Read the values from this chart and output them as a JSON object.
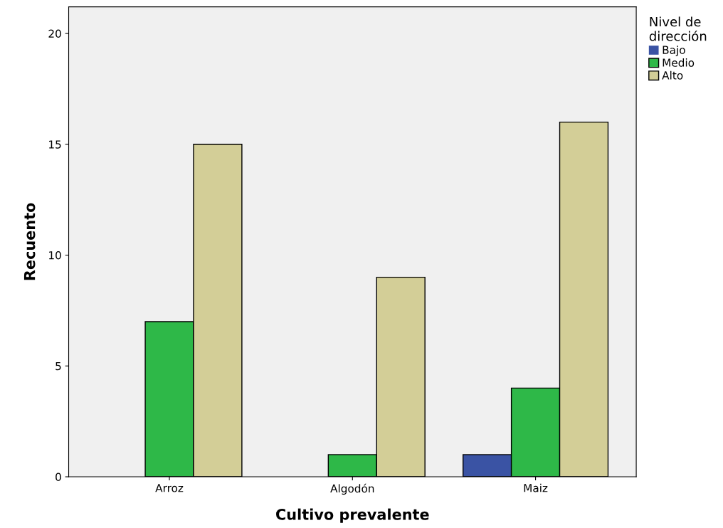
{
  "chart_data": {
    "type": "bar",
    "xlabel": "Cultivo prevalente",
    "ylabel": "Recuento",
    "legend_title": "Nivel de\ndirección",
    "categories": [
      "Arroz",
      "Algodón",
      "Maiz"
    ],
    "series": [
      {
        "name": "Bajo",
        "color": "#3a53a4",
        "values": [
          0,
          0,
          1
        ]
      },
      {
        "name": "Medio",
        "color": "#2eb848",
        "values": [
          7,
          1,
          4
        ]
      },
      {
        "name": "Alto",
        "color": "#d3ce97",
        "values": [
          15,
          9,
          16
        ]
      }
    ],
    "ylim": [
      0,
      21.2
    ],
    "yticks": [
      0,
      5,
      10,
      15,
      20
    ],
    "grid": false,
    "legend": "top right"
  }
}
